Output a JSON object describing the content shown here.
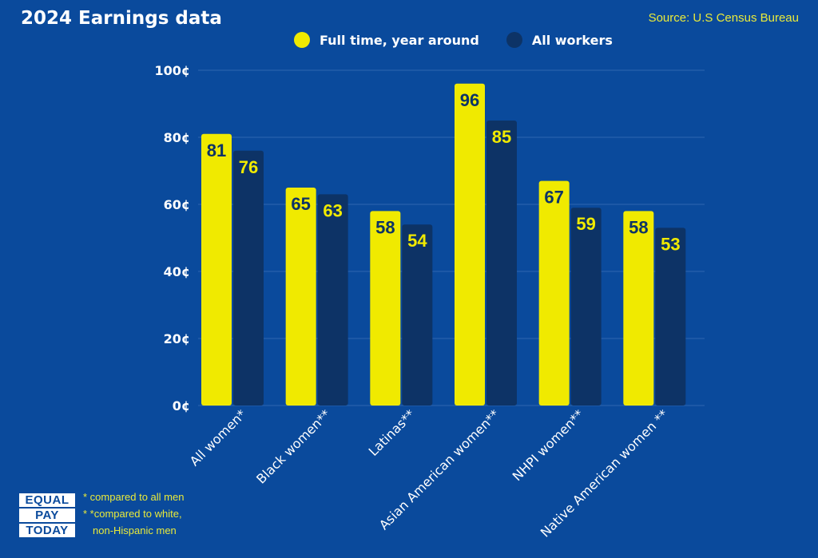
{
  "header": {
    "title": "2024 Earnings data",
    "source": "Source: U.S Census Bureau"
  },
  "colors": {
    "background": "#0a4a9c",
    "full_time": "#f0ea00",
    "all_workers": "#0d3366",
    "grid": "#2d66b0"
  },
  "logo": {
    "lines": [
      "EQUAL",
      "PAY",
      "TODAY"
    ]
  },
  "notes": {
    "line1": "* compared to all men",
    "line2": "* *compared to white,",
    "line3": "non-Hispanic men"
  },
  "chart_data": {
    "type": "bar",
    "title": "2024 Earnings data",
    "xlabel": "",
    "ylabel": "",
    "ylim": [
      0,
      100
    ],
    "yticks": [
      {
        "value": 0,
        "label": "0¢"
      },
      {
        "value": 20,
        "label": "20¢"
      },
      {
        "value": 40,
        "label": "40¢"
      },
      {
        "value": 60,
        "label": "60¢"
      },
      {
        "value": 80,
        "label": "80¢"
      },
      {
        "value": 100,
        "label": "100¢"
      }
    ],
    "categories": [
      "All women*",
      "Black women**",
      "Latinas**",
      "Asian American women**",
      "NHPI women**",
      "Native American women **"
    ],
    "series": [
      {
        "name": "Full time, year around",
        "color": "#f0ea00",
        "label_color": "#0d3366",
        "values": [
          81,
          65,
          58,
          96,
          67,
          58
        ]
      },
      {
        "name": "All workers",
        "color": "#0d3366",
        "label_color": "#f0ea00",
        "values": [
          76,
          63,
          54,
          85,
          59,
          53
        ]
      }
    ],
    "legend": "top-center",
    "grid": true
  }
}
